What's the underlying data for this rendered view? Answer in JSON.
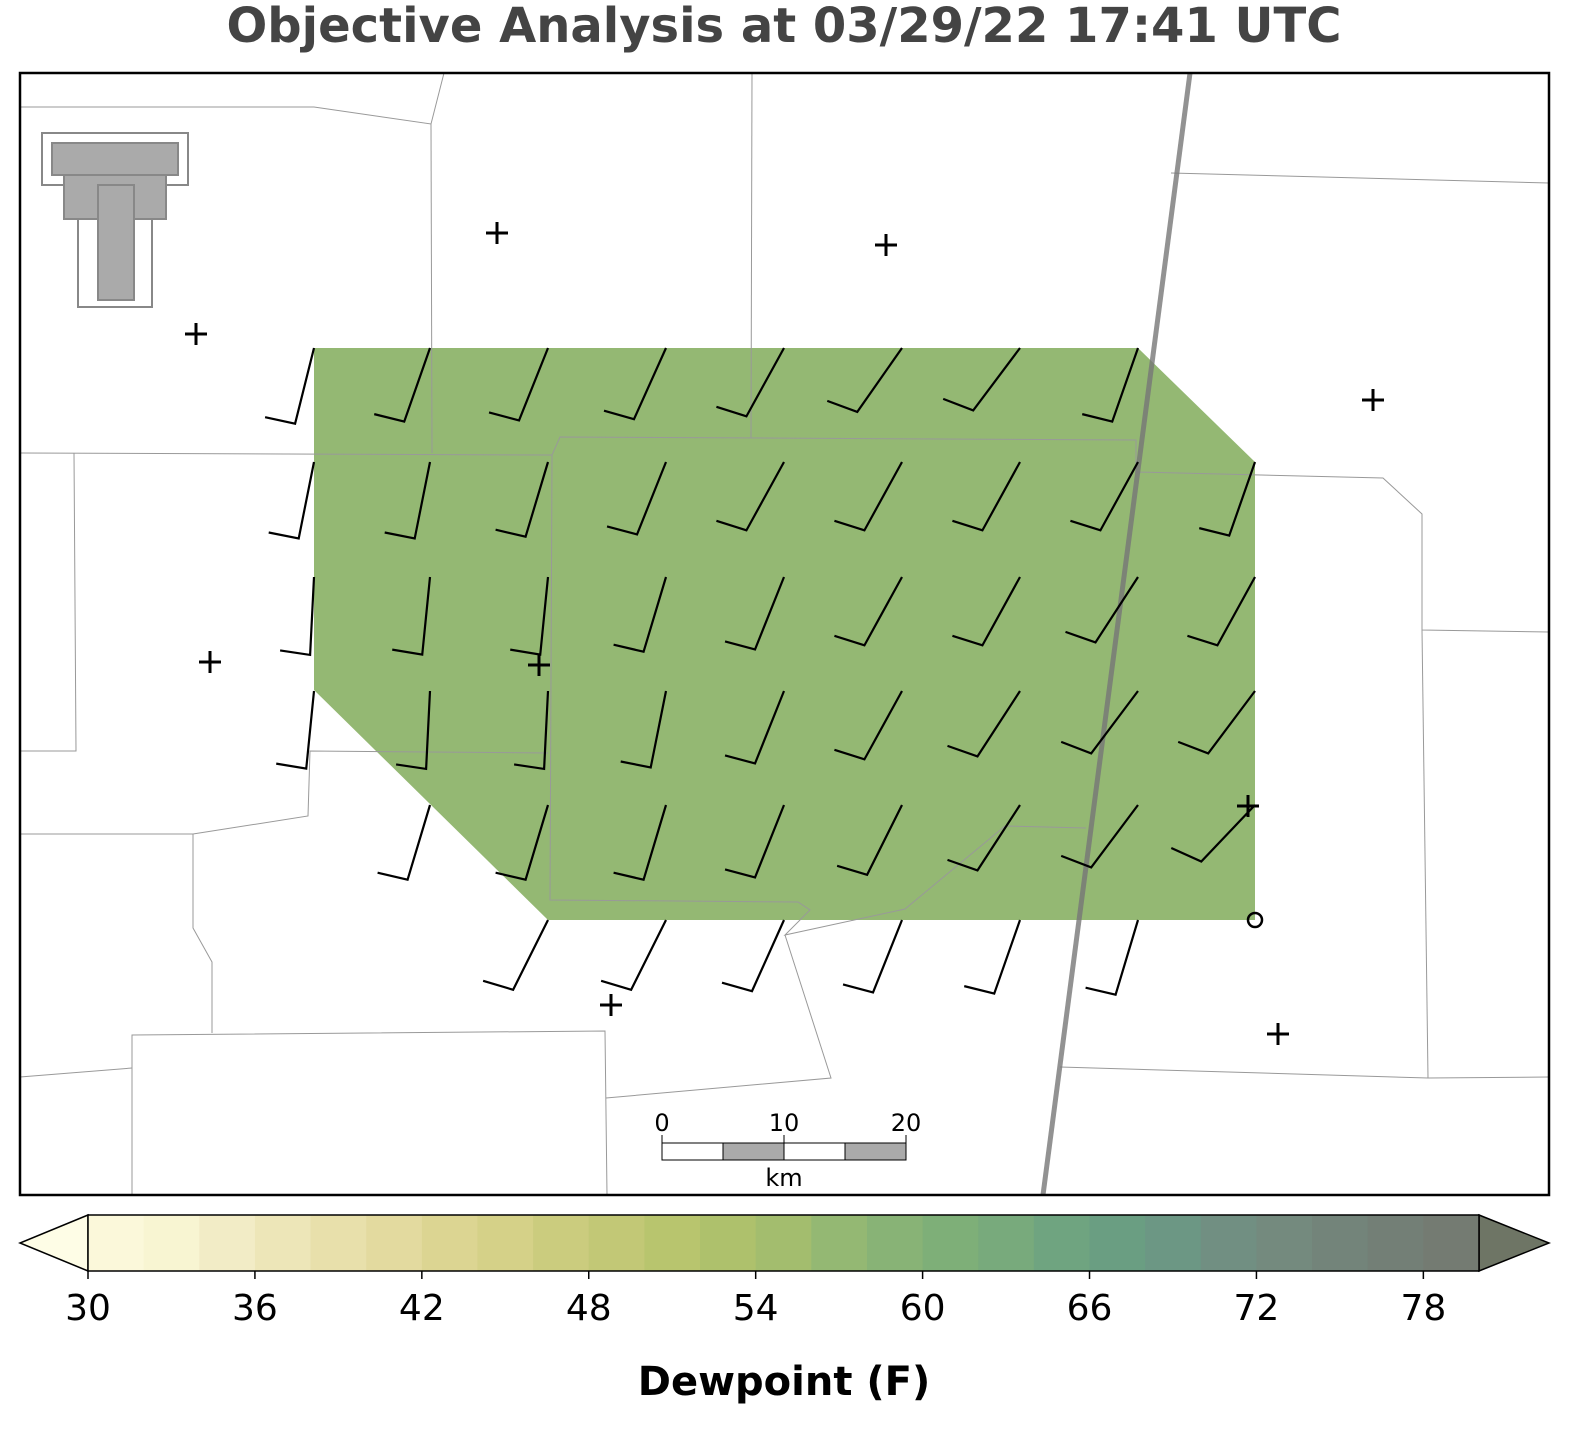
{
  "title": "Objective Analysis at 03/29/22 17:41 UTC",
  "colorbar": {
    "label": "Dewpoint (F)",
    "lim": [
      30,
      80
    ],
    "ticks": [
      30,
      36,
      42,
      48,
      54,
      60,
      66,
      72,
      78
    ],
    "colors": [
      "#fbf8da",
      "#f8f5d2",
      "#f2ecc6",
      "#ede6b8",
      "#e8e0ab",
      "#e3da9f",
      "#dcd592",
      "#d5d188",
      "#cbcc7e",
      "#c2c876",
      "#b8c56e",
      "#aec16c",
      "#a3bd6e",
      "#94b873",
      "#88b376",
      "#7eaf78",
      "#78aa7c",
      "#6fa480",
      "#6a9e82",
      "#6c9784",
      "#718f82",
      "#748a7e",
      "#73847a",
      "#737f76",
      "#747b72"
    ],
    "under": "#fefde6",
    "over": "#6e7565"
  },
  "field": {
    "value": 57
  },
  "scale_bar": {
    "ticks": [
      0,
      10,
      20
    ],
    "unit": "km"
  }
}
